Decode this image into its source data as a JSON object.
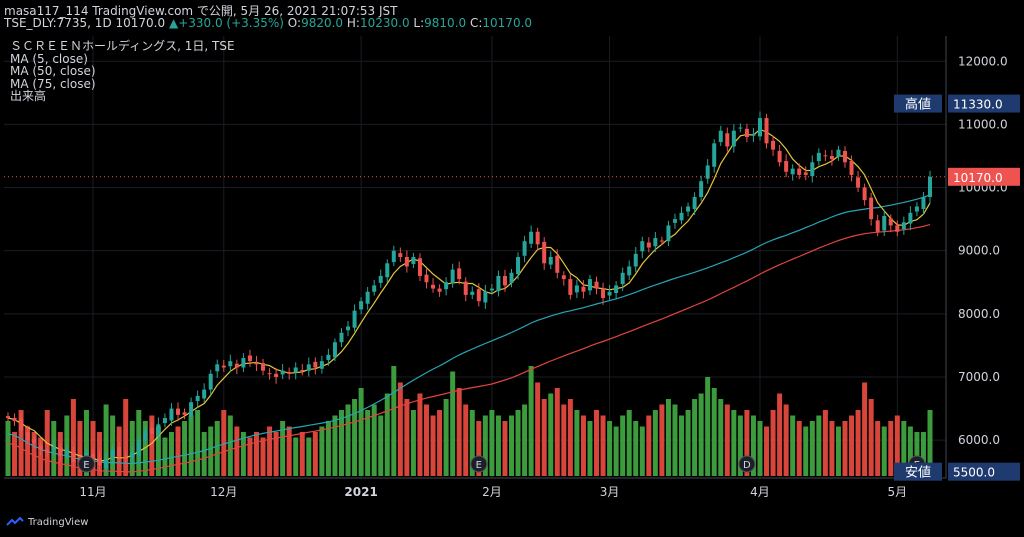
{
  "header": {
    "line1": "masa117_114 TradingView.com で公開, 5月 26, 2021 21:07:53 JST",
    "symbol": "TSE_DLY:7735, 1D 10170.0",
    "change": "+330.0 (+3.35%)",
    "o_label": "O:",
    "o_val": "9820.0",
    "h_label": "H:",
    "h_val": "10230.0",
    "l_label": "L:",
    "l_val": "9810.0",
    "c_label": "C:",
    "c_val": "10170.0"
  },
  "legend": {
    "title": "ＳＣＲＥＥＮホールディングス, 1日, TSE",
    "ma5": "MA (5, close)",
    "ma50": "MA (50, close)",
    "ma75": "MA (75, close)",
    "volume": "出来高"
  },
  "footer": {
    "brand": "TradingView"
  },
  "colors": {
    "up": "#26a69a",
    "down": "#ef5350",
    "ma5": "#e3c43b",
    "ma50": "#26a6b8",
    "ma75": "#e0463e",
    "vol_up": "#3c9b3c",
    "vol_down": "#d8453b",
    "axis_tag": "#1e3a6e",
    "last": "#ef5350"
  },
  "chart_data": {
    "type": "candlestick",
    "y_axis": {
      "min": 5400,
      "max": 12400,
      "ticks": [
        6000,
        7000,
        8000,
        9000,
        10000,
        11000,
        12000
      ],
      "labels": [
        "6000.0",
        "7000.0",
        "8000.0",
        "9000.0",
        "10000.0",
        "11000.0",
        "12000.0"
      ]
    },
    "x_labels": [
      {
        "label": "11月",
        "index": 13
      },
      {
        "label": "12月",
        "index": 33
      },
      {
        "label": "2021",
        "index": 54
      },
      {
        "label": "2月",
        "index": 74
      },
      {
        "label": "3月",
        "index": 92
      },
      {
        "label": "4月",
        "index": 115
      },
      {
        "label": "5月",
        "index": 136
      }
    ],
    "high_marker": {
      "label": "高値",
      "value": "11330.0",
      "y": 11330
    },
    "low_marker": {
      "label": "安値",
      "value": "5500.0",
      "y": 5500
    },
    "last_price": {
      "value": "10170.0",
      "y": 10170
    },
    "event_markers": [
      {
        "label": "E",
        "index": 12
      },
      {
        "label": "E",
        "index": 72
      },
      {
        "label": "D",
        "index": 113
      },
      {
        "label": "E",
        "index": 139
      }
    ],
    "closes": [
      6350,
      6300,
      6150,
      6000,
      5950,
      5850,
      5800,
      5900,
      5750,
      5850,
      5650,
      5600,
      5800,
      5700,
      5600,
      5700,
      5850,
      5750,
      5700,
      5800,
      6000,
      6150,
      6100,
      6250,
      6350,
      6500,
      6400,
      6400,
      6600,
      6700,
      6800,
      7050,
      7200,
      7150,
      7250,
      7150,
      7300,
      7250,
      7200,
      7100,
      7050,
      7000,
      7100,
      7050,
      7150,
      7100,
      7200,
      7150,
      7250,
      7350,
      7550,
      7700,
      7800,
      8050,
      8200,
      8350,
      8450,
      8600,
      8800,
      9000,
      8900,
      8750,
      8900,
      8600,
      8500,
      8400,
      8350,
      8500,
      8700,
      8550,
      8300,
      8350,
      8200,
      8350,
      8400,
      8600,
      8450,
      8650,
      8900,
      9150,
      9300,
      9100,
      8800,
      8900,
      8650,
      8550,
      8300,
      8450,
      8350,
      8550,
      8400,
      8250,
      8350,
      8450,
      8650,
      8750,
      8950,
      9150,
      9050,
      9200,
      9150,
      9400,
      9500,
      9600,
      9700,
      9850,
      10100,
      10350,
      10700,
      10900,
      10650,
      10900,
      10950,
      10800,
      10850,
      11100,
      10700,
      10600,
      10400,
      10250,
      10300,
      10200,
      10200,
      10400,
      10550,
      10500,
      10450,
      10600,
      10400,
      10200,
      10000,
      9800,
      9500,
      9300,
      9550,
      9400,
      9300,
      9450,
      9600,
      9700,
      9850,
      10170
    ],
    "volumes": [
      0.5,
      0.4,
      0.6,
      0.45,
      0.4,
      0.35,
      0.6,
      0.5,
      0.4,
      0.55,
      0.7,
      0.5,
      0.6,
      0.5,
      0.4,
      0.65,
      0.55,
      0.45,
      0.7,
      0.5,
      0.6,
      0.5,
      0.55,
      0.45,
      0.35,
      0.4,
      0.45,
      0.5,
      0.55,
      0.6,
      0.4,
      0.45,
      0.5,
      0.6,
      0.55,
      0.45,
      0.4,
      0.35,
      0.4,
      0.35,
      0.45,
      0.4,
      0.5,
      0.45,
      0.35,
      0.4,
      0.35,
      0.4,
      0.45,
      0.5,
      0.55,
      0.6,
      0.65,
      0.7,
      0.8,
      0.6,
      0.65,
      0.55,
      0.75,
      1.0,
      0.85,
      0.7,
      0.6,
      0.75,
      0.65,
      0.55,
      0.6,
      0.7,
      0.95,
      0.8,
      0.65,
      0.6,
      0.5,
      0.55,
      0.6,
      0.55,
      0.5,
      0.55,
      0.6,
      0.65,
      1.0,
      0.85,
      0.7,
      0.75,
      0.8,
      0.65,
      0.7,
      0.6,
      0.55,
      0.5,
      0.6,
      0.55,
      0.5,
      0.45,
      0.55,
      0.6,
      0.5,
      0.45,
      0.55,
      0.6,
      0.65,
      0.7,
      0.65,
      0.55,
      0.6,
      0.7,
      0.75,
      0.9,
      0.8,
      0.7,
      0.65,
      0.6,
      0.55,
      0.6,
      0.55,
      0.5,
      0.45,
      0.6,
      0.75,
      0.65,
      0.55,
      0.5,
      0.45,
      0.5,
      0.55,
      0.6,
      0.5,
      0.45,
      0.5,
      0.55,
      0.6,
      0.85,
      0.7,
      0.5,
      0.45,
      0.5,
      0.55,
      0.5,
      0.45,
      0.4,
      0.4,
      0.6
    ]
  }
}
